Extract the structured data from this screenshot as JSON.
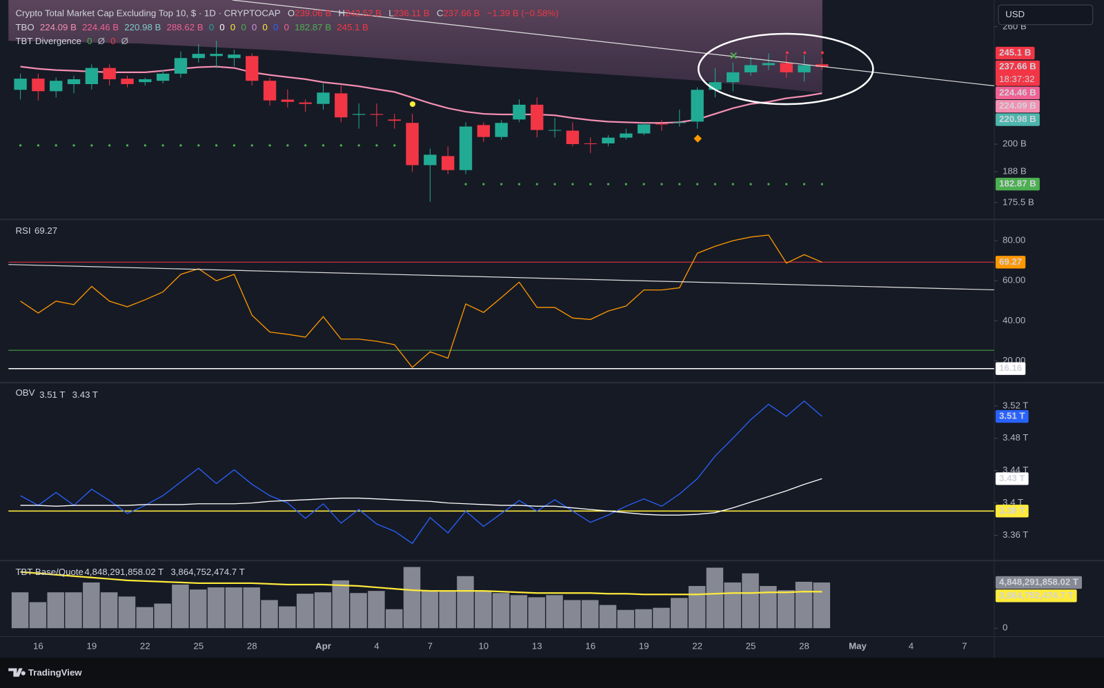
{
  "legend": {
    "line1": {
      "title": "Crypto Total Market Cap Excluding Top 10, $ · 1D · CRYPTOCAP",
      "ohlc": [
        {
          "key": "O",
          "value": "239.06 B"
        },
        {
          "key": "H",
          "value": "242.52 B"
        },
        {
          "key": "L",
          "value": "236.11 B"
        },
        {
          "key": "C",
          "value": "237.66 B"
        }
      ],
      "change": "−1.39 B (−0.58%)",
      "color": "#f23645"
    },
    "line2": {
      "name": "TBO",
      "items": [
        {
          "text": "224.09 B",
          "color": "#f48fb1"
        },
        {
          "text": "224.46 B",
          "color": "#f06292"
        },
        {
          "text": "220.98 B",
          "color": "#80cbc4"
        },
        {
          "text": "288.62 B",
          "color": "#f06292"
        },
        {
          "text": "0",
          "color": "#26a69a"
        },
        {
          "text": "0",
          "color": "#ffffff"
        },
        {
          "text": "0",
          "color": "#ffeb3b"
        },
        {
          "text": "0",
          "color": "#4caf50"
        },
        {
          "text": "0",
          "color": "#ce93d8"
        },
        {
          "text": "0",
          "color": "#ffeb3b"
        },
        {
          "text": "0",
          "color": "#2962ff"
        },
        {
          "text": "0",
          "color": "#f06292"
        },
        {
          "text": "182.87 B",
          "color": "#4caf50"
        },
        {
          "text": "245.1 B",
          "color": "#f23645"
        }
      ]
    },
    "line3": {
      "name": "TBT Divergence",
      "items": [
        {
          "text": "0",
          "color": "#4caf50"
        },
        {
          "text": "Ø",
          "color": "#b2b5be"
        },
        {
          "text": "0",
          "color": "#f23645"
        },
        {
          "text": "Ø",
          "color": "#b2b5be"
        }
      ]
    }
  },
  "currency": "USD",
  "brand": "TradingView",
  "chart_data": [
    {
      "type": "candlestick",
      "categories": [
        null,
        "16",
        null,
        null,
        "19",
        null,
        null,
        "22",
        null,
        null,
        "25",
        null,
        null,
        "28",
        null,
        null,
        null,
        "Apr",
        null,
        null,
        "4",
        null,
        null,
        "7",
        null,
        null,
        "10",
        null,
        null,
        "13",
        null,
        null,
        "16",
        null,
        null,
        "19",
        null,
        null,
        "22",
        null,
        null,
        "25",
        null,
        null,
        "28",
        null,
        null,
        "May",
        null,
        null,
        "4",
        null,
        null,
        "7",
        null
      ],
      "open": [
        225.8,
        231.5,
        225.1,
        228.7,
        228.7,
        237.1,
        231.5,
        229.7,
        230.4,
        234.1,
        242.4,
        243.5,
        242.4,
        243.5,
        230.4,
        220.9,
        219.5,
        218.8,
        224.0,
        213.5,
        213.9,
        211.3,
        209.7,
        190.8,
        194.7,
        188.7,
        208.7,
        203.2,
        211.3,
        218.4,
        206.1,
        206.1,
        200.3,
        200.3,
        202.9,
        204.8,
        209.3,
        209.7,
        210.3,
        225.8,
        229.7,
        234.8,
        238.6,
        239.7,
        234.8,
        239.06,
        null,
        null,
        null,
        null,
        null,
        null,
        null,
        null,
        null
      ],
      "high": [
        234.1,
        234,
        232,
        233,
        239,
        239,
        233,
        232,
        236,
        246,
        250,
        252,
        247,
        245,
        232,
        226,
        221,
        229,
        228,
        219,
        219,
        214,
        214,
        198,
        199,
        210,
        210,
        211,
        221,
        222,
        212,
        210,
        203,
        204,
        207,
        210,
        211,
        216,
        227,
        237,
        240,
        243,
        245,
        244,
        244,
        242.52,
        null,
        null,
        null,
        null,
        null,
        null,
        null,
        null,
        null
      ],
      "low": [
        221,
        220.5,
        222,
        224,
        226,
        228,
        227,
        228,
        229,
        232,
        240,
        237,
        238,
        228,
        218,
        217,
        215,
        216,
        210,
        207,
        208,
        207,
        188,
        175.8,
        187,
        187,
        201,
        202,
        210,
        203,
        203,
        199,
        196,
        199,
        202,
        204,
        206,
        208,
        207,
        222,
        225,
        233,
        236,
        232,
        230,
        236.11,
        null,
        null,
        null,
        null,
        null,
        null,
        null,
        null,
        null
      ],
      "close": [
        231.5,
        225.1,
        230.4,
        231.2,
        237.1,
        231.2,
        228.7,
        231.2,
        234.1,
        242.4,
        244.7,
        244.7,
        244.3,
        230.4,
        220.5,
        219.8,
        218.8,
        224.4,
        212.3,
        213.9,
        213.5,
        210.7,
        190.8,
        195.3,
        188.7,
        208.0,
        203.2,
        209.7,
        218.4,
        206.4,
        206.4,
        200.0,
        200.0,
        202.9,
        204.8,
        209.0,
        209.0,
        210.0,
        225.8,
        229.7,
        234.8,
        238.6,
        239.7,
        234.8,
        238.6,
        237.66,
        null,
        null,
        null,
        null,
        null,
        null,
        null,
        null,
        null
      ],
      "up_color": "#22ab94",
      "down_color": "#f23645",
      "lines": [
        {
          "color": "#f48fb1",
          "values": [
            237.8,
            236.7,
            236.0,
            235.6,
            235.2,
            234.8,
            234.8,
            234.8,
            235.6,
            236.7,
            237.5,
            237.8,
            237.1,
            234.8,
            233.4,
            232.3,
            231.2,
            229.7,
            228.7,
            227.6,
            226.1,
            224.7,
            221.9,
            219.1,
            216.7,
            215.0,
            214.0,
            213.7,
            213.7,
            213.7,
            213.3,
            212.0,
            211.0,
            210.3,
            210.0,
            209.7,
            209.7,
            210.0,
            211.3,
            214.0,
            216.7,
            218.8,
            219.8,
            221.6,
            222.6,
            224.09,
            null,
            null,
            null,
            null,
            null,
            null,
            null,
            null,
            null
          ]
        }
      ],
      "dots": [
        {
          "color": "#4caf50",
          "values": [
            199.4,
            199.4,
            199.4,
            199.4,
            199.4,
            199.4,
            199.4,
            199.4,
            199.4,
            199.4,
            199.4,
            199.4,
            199.4,
            199.4,
            199.4,
            199.4,
            199.4,
            199.4,
            199.4,
            199.4,
            199.4,
            199.4,
            null,
            null,
            null,
            182.87,
            182.87,
            182.87,
            182.87,
            182.87,
            182.87,
            182.87,
            182.87,
            182.87,
            182.87,
            182.87,
            182.87,
            182.87,
            182.87,
            182.87,
            182.87,
            182.87,
            182.87,
            182.87,
            182.87,
            182.87,
            null,
            null,
            null,
            null,
            null,
            null,
            null,
            null,
            null
          ]
        }
      ],
      "log": true,
      "ylim": [
        169.5,
        276
      ],
      "yticks": [
        {
          "value": 260,
          "label": "260 B"
        },
        {
          "value": 200,
          "label": "200 B"
        },
        {
          "value": 188,
          "label": "188 B"
        },
        {
          "value": 175.5,
          "label": "175.5 B"
        }
      ],
      "price_tags": [
        {
          "value": 245.1,
          "label": "245.1 B",
          "color": "#f23645",
          "text_color": "#ffffff"
        },
        {
          "value": 237.66,
          "label": "237.66 B",
          "countdown": "18:37:32",
          "color": "#f23645",
          "text_color": "#ffffff"
        },
        {
          "value": 224.46,
          "label": "224.46 B",
          "color": "#f06292",
          "text_color": "#ffffff"
        },
        {
          "value": 224.09,
          "label": "224.09 B",
          "color": "#f48fb1",
          "text_color": "#131722"
        },
        {
          "value": 220.98,
          "label": "220.98 B",
          "color": "#4db6ac",
          "text_color": "#131722"
        },
        {
          "value": 182.87,
          "label": "182.87 B",
          "color": "#4caf50",
          "text_color": "#ffffff"
        }
      ]
    },
    {
      "type": "line",
      "title": "RSI",
      "color": "#ff9800",
      "current_color": "#f23645",
      "values": [
        49.8,
        43.9,
        49.8,
        48.1,
        57.2,
        49.8,
        47.0,
        50.5,
        54.4,
        63.2,
        66.0,
        60.0,
        63.2,
        42.8,
        34.4,
        33.3,
        31.9,
        42.1,
        30.9,
        30.9,
        29.8,
        28.1,
        16.8,
        24.6,
        21.4,
        48.4,
        44.2,
        51.6,
        59.3,
        46.7,
        46.7,
        41.4,
        40.7,
        44.9,
        47.4,
        55.4,
        55.4,
        56.5,
        73.7,
        77.2,
        80.0,
        81.8,
        82.8,
        68.8,
        73.0,
        69.27
      ],
      "ylim": [
        9.5,
        89.5
      ],
      "yticks": [
        {
          "value": 80,
          "label": "80.00"
        },
        {
          "value": 60,
          "label": "60.00"
        },
        {
          "value": 40,
          "label": "40.00"
        },
        {
          "value": 20,
          "label": "20.00"
        }
      ],
      "levels": [
        {
          "value": 25.3,
          "color": "#4caf50"
        },
        {
          "value": 16.16,
          "label": "16.16",
          "color": "#ffffff"
        }
      ]
    },
    {
      "type": "line",
      "title": "OBV",
      "series": [
        {
          "color": "#2962ff",
          "last_label": "3.51 T",
          "values": [
            3.409,
            3.397,
            3.413,
            3.397,
            3.417,
            3.403,
            3.387,
            3.397,
            3.409,
            3.426,
            3.443,
            3.424,
            3.441,
            3.423,
            3.409,
            3.4,
            3.381,
            3.399,
            3.375,
            3.392,
            3.374,
            3.365,
            3.35,
            3.382,
            3.363,
            3.39,
            3.371,
            3.387,
            3.403,
            3.39,
            3.404,
            3.39,
            3.376,
            3.385,
            3.396,
            3.405,
            3.396,
            3.411,
            3.43,
            3.458,
            3.48,
            3.503,
            3.522,
            3.507,
            3.526,
            3.507
          ]
        },
        {
          "color": "#ffffff",
          "last_label": "3.43 T",
          "values": [
            3.397,
            3.397,
            3.396,
            3.397,
            3.397,
            3.397,
            3.397,
            3.398,
            3.398,
            3.398,
            3.399,
            3.399,
            3.399,
            3.4,
            3.402,
            3.403,
            3.404,
            3.405,
            3.406,
            3.406,
            3.405,
            3.404,
            3.403,
            3.402,
            3.4,
            3.399,
            3.398,
            3.397,
            3.397,
            3.396,
            3.396,
            3.394,
            3.392,
            3.39,
            3.388,
            3.386,
            3.385,
            3.385,
            3.386,
            3.388,
            3.394,
            3.401,
            3.408,
            3.415,
            3.423,
            3.43
          ]
        }
      ],
      "ylim": [
        3.3304,
        3.5478
      ],
      "yticks": [
        {
          "value": 3.52,
          "label": "3.52 T"
        },
        {
          "value": 3.48,
          "label": "3.48 T"
        },
        {
          "value": 3.44,
          "label": "3.44 T"
        },
        {
          "value": 3.4,
          "label": "3.4 T"
        },
        {
          "value": 3.36,
          "label": "3.36 T"
        }
      ],
      "levels": [
        {
          "value": 3.39,
          "label": "3.39 T",
          "color": "#ffeb3b"
        }
      ]
    },
    {
      "type": "bar",
      "title": "TBT Base/Quote",
      "series": [
        {
          "type": "bar",
          "color": "#868993",
          "last_label": "4,848,291,858.02 T",
          "values": [
            3804000000,
            2760000000,
            3804000000,
            3804000000,
            4848000000,
            3804000000,
            3357000000,
            2238000000,
            2611000000,
            4625000000,
            4102000000,
            4326000000,
            4326000000,
            4326000000,
            2984000000,
            2312000000,
            3655000000,
            3804000000,
            5072000000,
            3729000000,
            3953000000,
            2014000000,
            6489000000,
            3953000000,
            3953000000,
            5520000000,
            3953000000,
            3729000000,
            3506000000,
            3282000000,
            3506000000,
            2984000000,
            2984000000,
            2461000000,
            1939000000,
            2014000000,
            2163000000,
            3207000000,
            4475000000,
            6415000000,
            4848000000,
            5818000000,
            4475000000,
            4028000000,
            4923000000,
            4848291858.02
          ]
        },
        {
          "type": "line",
          "color": "#ffeb3b",
          "last_label": "3,864,752,474.7 T",
          "values": [
            5967000000,
            5818000000,
            5669000000,
            5520000000,
            5370000000,
            5221000000,
            5072000000,
            4997000000,
            4923000000,
            4848000000,
            4774000000,
            4774000000,
            4774000000,
            4774000000,
            4699000000,
            4625000000,
            4625000000,
            4625000000,
            4550000000,
            4475000000,
            4326000000,
            4177000000,
            4028000000,
            3953000000,
            3953000000,
            3953000000,
            3953000000,
            3879000000,
            3804000000,
            3729000000,
            3729000000,
            3729000000,
            3729000000,
            3655000000,
            3655000000,
            3580000000,
            3580000000,
            3580000000,
            3580000000,
            3655000000,
            3729000000,
            3729000000,
            3804000000,
            3804000000,
            3879000000,
            3864752474.7
          ]
        }
      ],
      "ylim": [
        -895000000,
        6937000000
      ],
      "yticks": [
        0
      ]
    }
  ]
}
